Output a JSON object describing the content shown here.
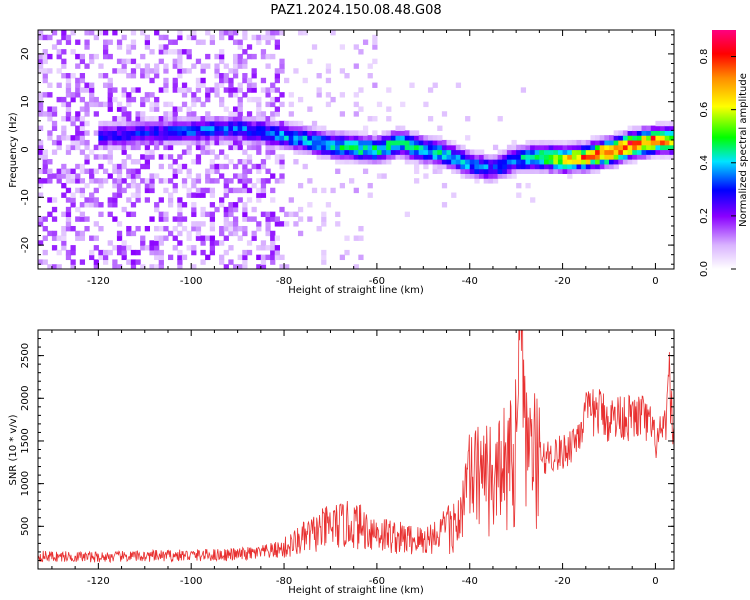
{
  "title": "PAZ1.2024.150.08.48.G08",
  "chart_data": [
    {
      "type": "heatmap",
      "xlabel": "Height of straight line (km)",
      "ylabel": "Frequency (Hz)",
      "xlim": [
        -133,
        4
      ],
      "ylim": [
        -25,
        25
      ],
      "xticks": [
        -120,
        -100,
        -80,
        -60,
        -40,
        -20,
        0
      ],
      "yticks": [
        -20,
        -10,
        0,
        10,
        20
      ],
      "colorbar": {
        "label": "Normalized spectral amplitude",
        "range": [
          0.0,
          0.9
        ],
        "ticks": [
          0.0,
          0.2,
          0.4,
          0.6,
          0.8
        ],
        "colormap": [
          "#ffffff",
          "#d9b3ff",
          "#8a00ff",
          "#0000ff",
          "#00e5ff",
          "#00ff00",
          "#ffff00",
          "#ff8c00",
          "#ff0000",
          "#ff0080"
        ]
      },
      "ridge": {
        "x": [
          -118,
          -110,
          -100,
          -90,
          -80,
          -70,
          -60,
          -55,
          -50,
          -45,
          -40,
          -35,
          -30,
          -25,
          -20,
          -15,
          -10,
          -5,
          0,
          3
        ],
        "y": [
          3,
          3.5,
          4,
          4.5,
          3,
          1,
          0,
          1.5,
          0,
          -1,
          -3,
          -4,
          -2,
          -1.5,
          -2,
          -1.5,
          -0.5,
          1,
          2,
          2
        ],
        "amplitude": [
          0.3,
          0.3,
          0.35,
          0.35,
          0.4,
          0.45,
          0.5,
          0.5,
          0.45,
          0.45,
          0.4,
          0.35,
          0.4,
          0.55,
          0.65,
          0.75,
          0.85,
          0.85,
          0.8,
          0.7
        ]
      }
    },
    {
      "type": "line",
      "xlabel": "Height of straight line (km)",
      "ylabel": "SNR (10 * v/v)",
      "xlim": [
        -133,
        4
      ],
      "ylim": [
        0,
        2800
      ],
      "xticks": [
        -120,
        -100,
        -80,
        -60,
        -40,
        -20,
        0
      ],
      "yticks": [
        500,
        1000,
        1500,
        2000,
        2500
      ],
      "line_color": "#e83030",
      "series": [
        {
          "x": [
            -133,
            -120,
            -110,
            -100,
            -90,
            -85,
            -80,
            -75,
            -70,
            -65,
            -60,
            -55,
            -50,
            -45,
            -42,
            -40,
            -37,
            -35,
            -32,
            -30,
            -29,
            -28,
            -25,
            -22,
            -20,
            -17,
            -15,
            -12,
            -10,
            -7,
            -5,
            -3,
            -1,
            0,
            2,
            3,
            4
          ],
          "y": [
            150,
            140,
            150,
            160,
            170,
            190,
            240,
            380,
            500,
            520,
            430,
            360,
            330,
            460,
            650,
            1050,
            1150,
            1050,
            1300,
            1450,
            2700,
            1500,
            1300,
            1350,
            1350,
            1550,
            1800,
            1850,
            1750,
            1800,
            1750,
            1800,
            1650,
            1500,
            1600,
            2200,
            1500
          ]
        }
      ]
    }
  ]
}
